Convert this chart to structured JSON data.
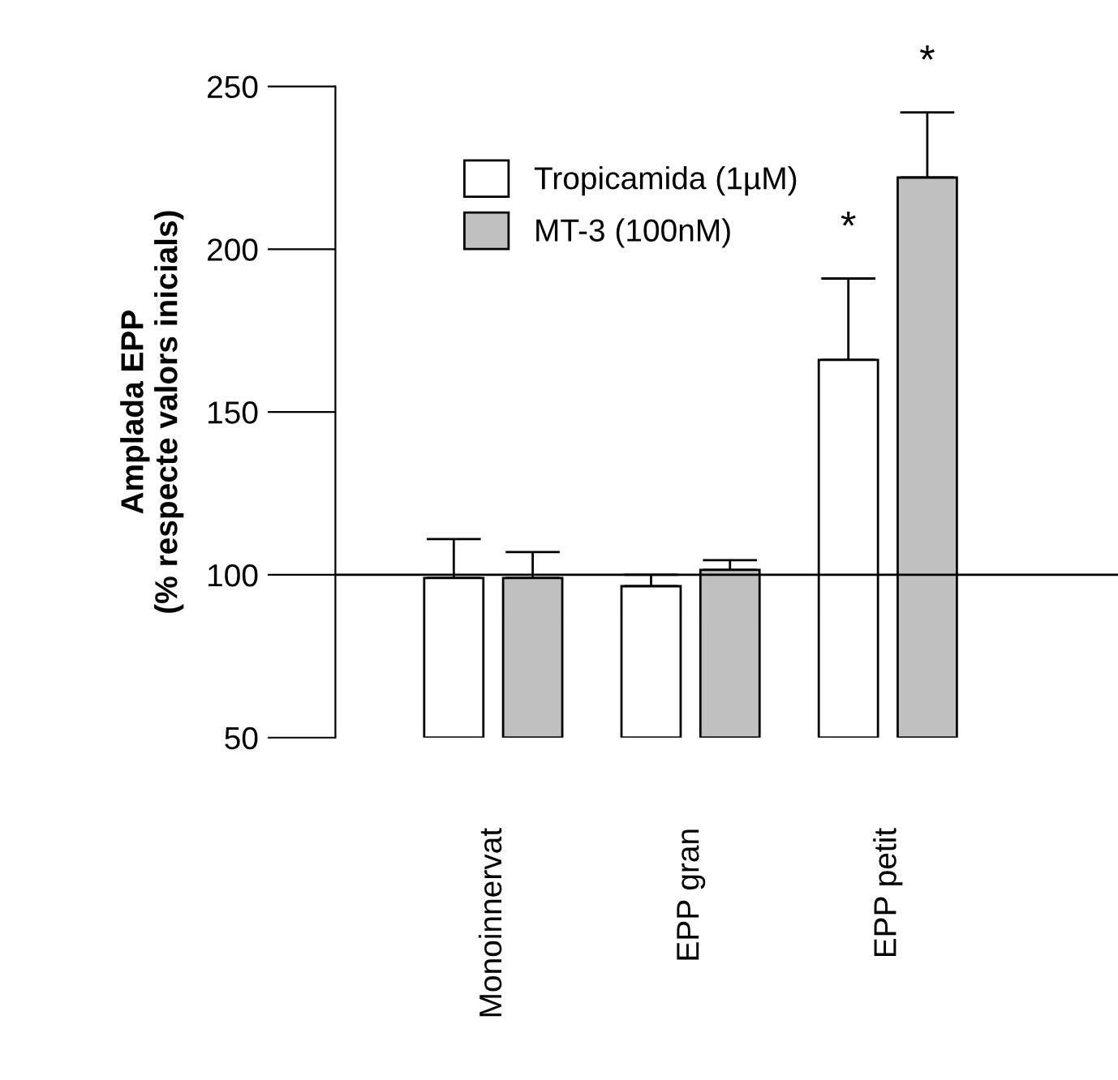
{
  "chart_data": {
    "type": "bar",
    "ylabel": "Amplada EPP\n(% respecte valors inicials)",
    "categories": [
      "Monoinnervat",
      "EPP gran",
      "EPP petit"
    ],
    "series": [
      {
        "name": "Tropicamida (1µM)",
        "color": "#ffffff",
        "values": [
          99,
          96.5,
          166
        ],
        "errors": [
          [
            99,
            111
          ],
          [
            96.5,
            100
          ],
          [
            166,
            191
          ]
        ]
      },
      {
        "name": "MT-3 (100nM)",
        "color": "#c0c0c0",
        "values": [
          99,
          101.5,
          222
        ],
        "errors": [
          [
            99,
            107
          ],
          [
            101.5,
            104.5
          ],
          [
            222,
            242
          ]
        ]
      }
    ],
    "ylim": [
      50,
      250
    ],
    "yticks": [
      50,
      100,
      150,
      200,
      250
    ],
    "ref_lines": [
      {
        "axis": "y",
        "value": 100,
        "color": "#000000"
      }
    ],
    "annotations": [
      "*",
      "*"
    ],
    "legend": "top left",
    "grid": false
  }
}
